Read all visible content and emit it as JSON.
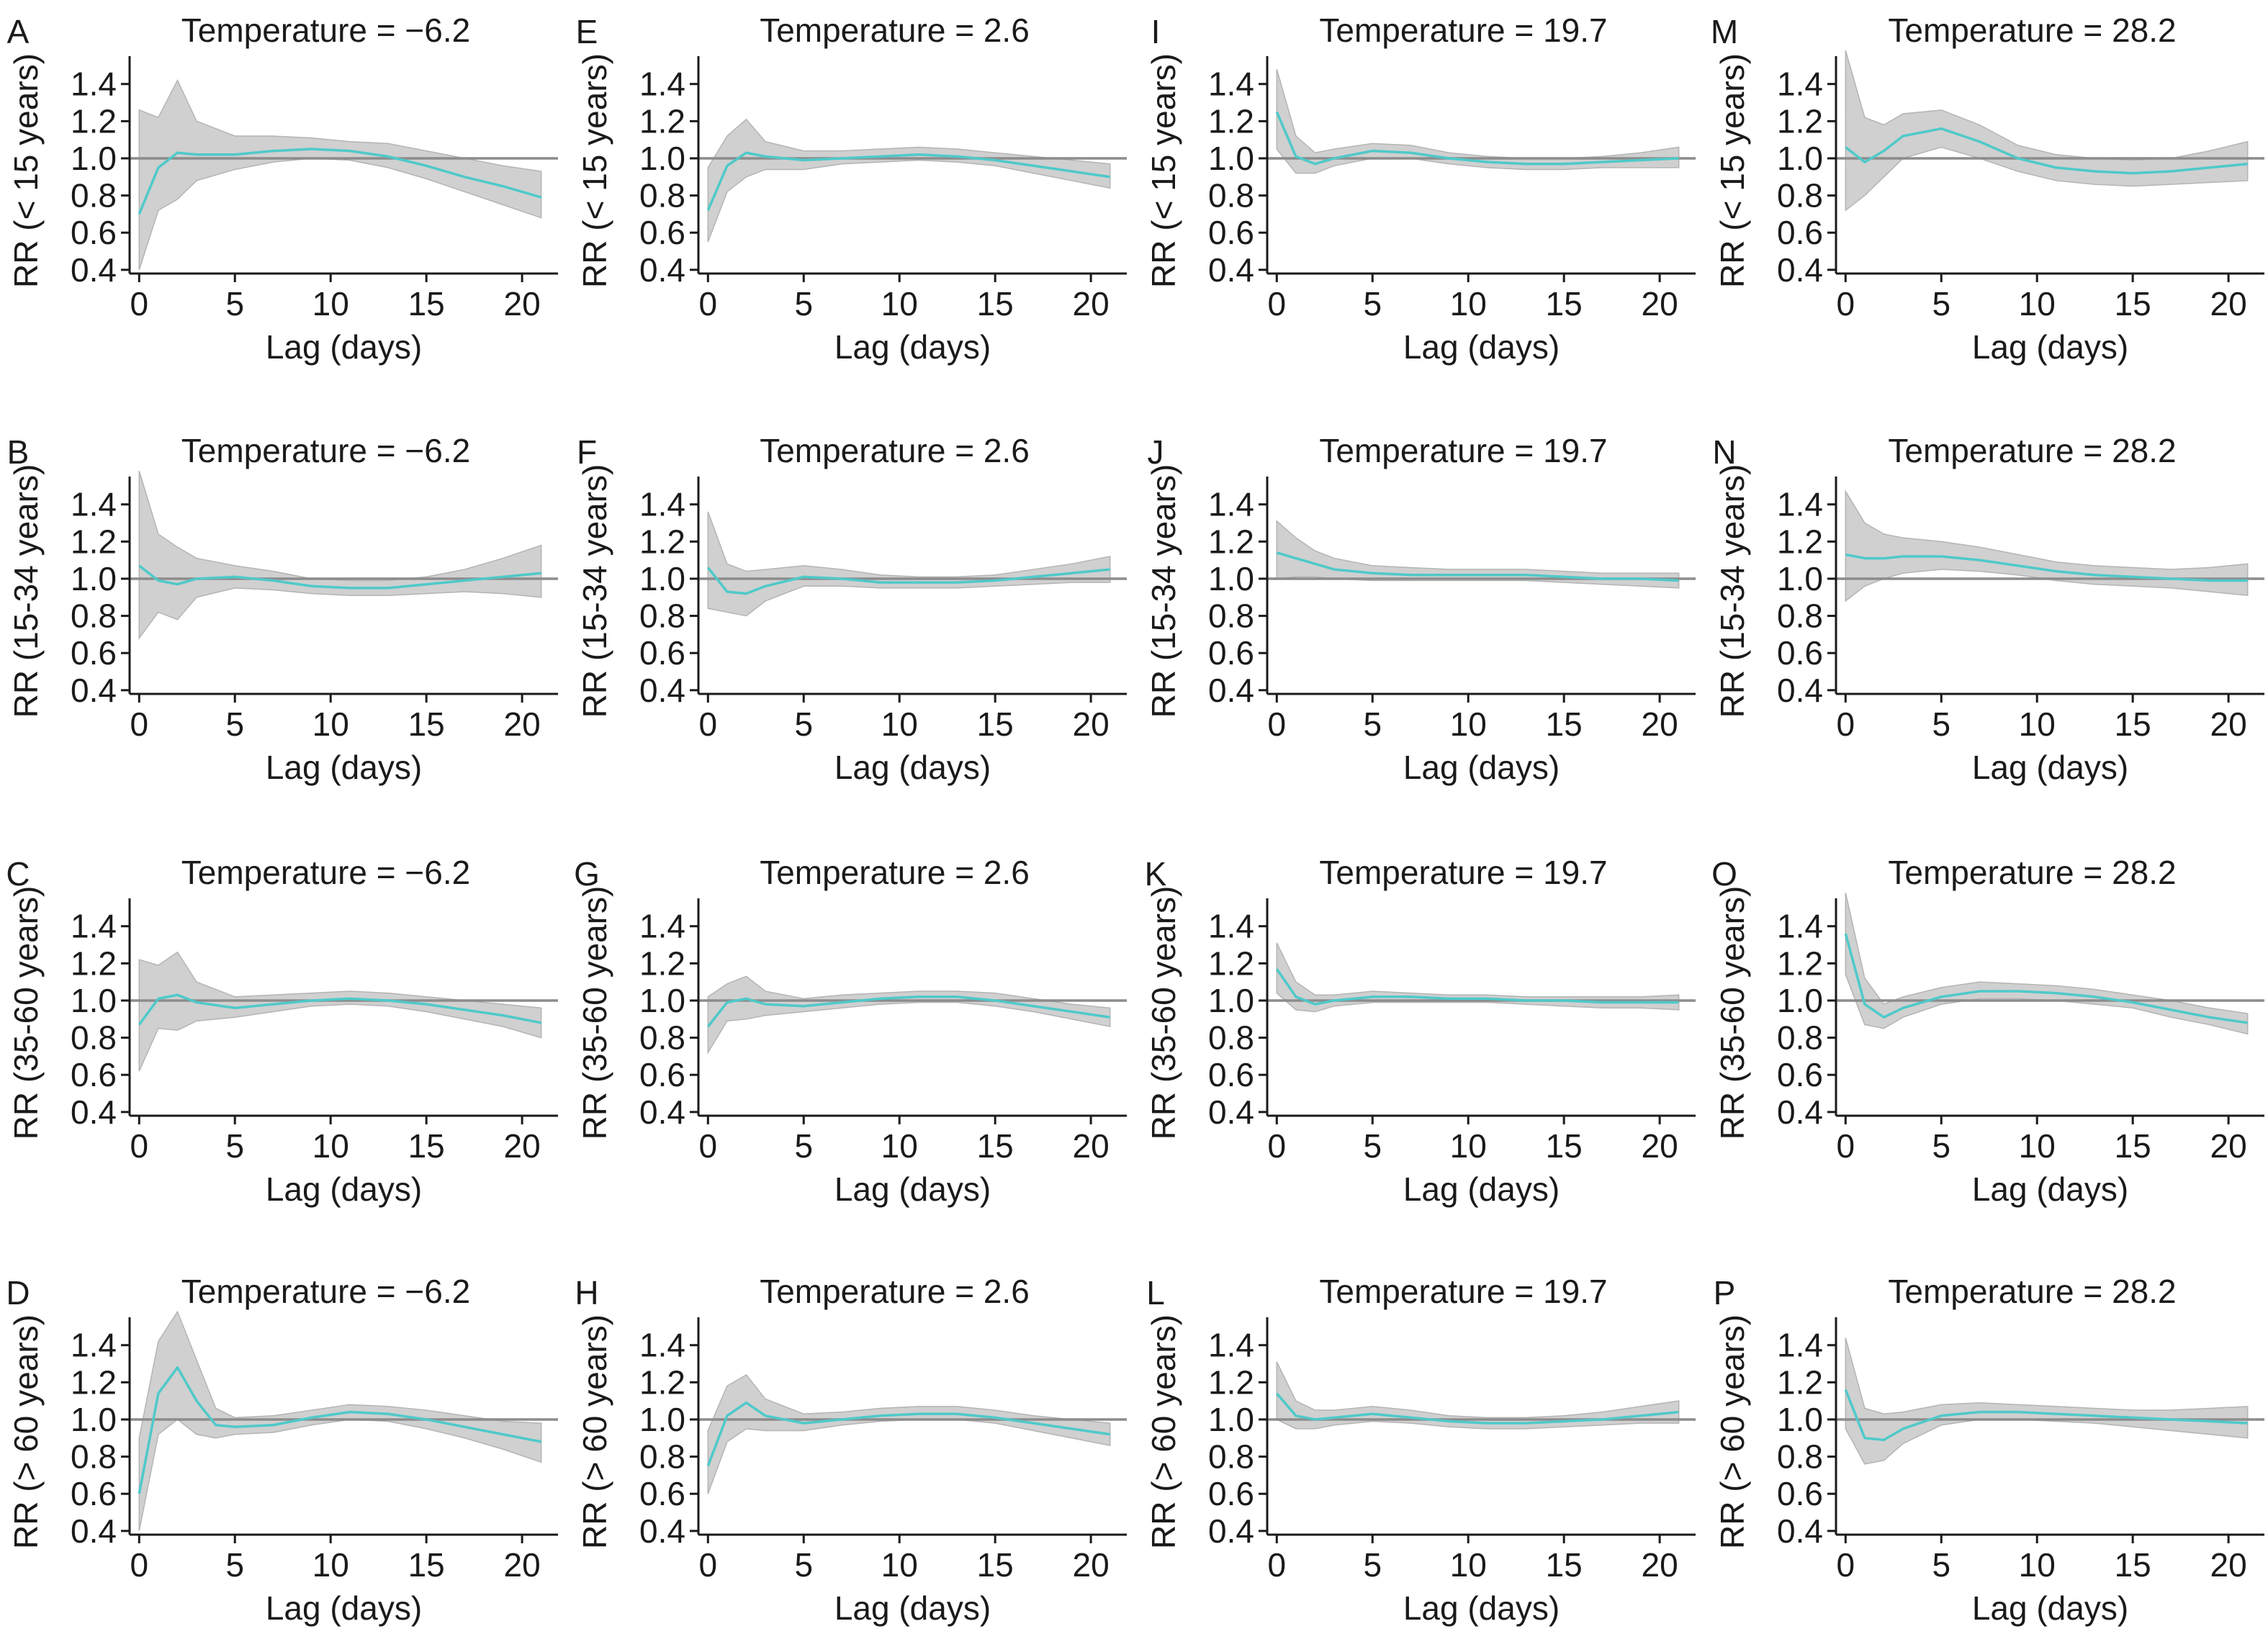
{
  "chart_data": {
    "type": "line",
    "layout": "4x4 grid",
    "grid": false,
    "x_ticks": [
      0,
      5,
      10,
      15,
      20
    ],
    "x_tick_labels": [
      "0",
      "5",
      "10",
      "15",
      "20"
    ],
    "y_ticks": [
      0.4,
      0.6,
      0.8,
      1.0,
      1.2,
      1.4
    ],
    "y_tick_labels": [
      "0.4",
      "0.6",
      "0.8",
      "1.0",
      "1.2",
      "1.4"
    ],
    "xlim": [
      -0.5,
      21.5
    ],
    "ylim": [
      0.38,
      1.55
    ],
    "reference_line": 1.0,
    "colors": {
      "line": "#4fc9c9",
      "band": "#c8c8c8",
      "reference": "#8c8c8c",
      "text": "#1a1a1a"
    },
    "panels": [
      {
        "letter": "A",
        "title": "Temperature = −6.2",
        "xlabel": "Lag (days)",
        "ylabel": "RR (< 15 years)",
        "x": [
          0,
          1,
          2,
          3,
          5,
          7,
          9,
          11,
          13,
          15,
          17,
          19,
          21
        ],
        "y": [
          0.7,
          0.95,
          1.03,
          1.02,
          1.02,
          1.04,
          1.05,
          1.04,
          1.01,
          0.96,
          0.9,
          0.85,
          0.79
        ],
        "lower": [
          0.4,
          0.72,
          0.78,
          0.88,
          0.94,
          0.98,
          1.0,
          0.99,
          0.95,
          0.89,
          0.82,
          0.75,
          0.68
        ],
        "upper": [
          1.26,
          1.22,
          1.42,
          1.2,
          1.12,
          1.12,
          1.11,
          1.09,
          1.08,
          1.04,
          1.0,
          0.96,
          0.93
        ]
      },
      {
        "letter": "B",
        "title": "Temperature = −6.2",
        "xlabel": "Lag (days)",
        "ylabel": "RR (15-34 years)",
        "x": [
          0,
          1,
          2,
          3,
          5,
          7,
          9,
          11,
          13,
          15,
          17,
          19,
          21
        ],
        "y": [
          1.07,
          0.99,
          0.97,
          1.0,
          1.01,
          0.99,
          0.96,
          0.95,
          0.95,
          0.97,
          0.99,
          1.01,
          1.03
        ],
        "lower": [
          0.68,
          0.82,
          0.78,
          0.9,
          0.95,
          0.94,
          0.92,
          0.91,
          0.91,
          0.92,
          0.93,
          0.92,
          0.9
        ],
        "upper": [
          1.58,
          1.24,
          1.17,
          1.11,
          1.07,
          1.04,
          1.0,
          0.99,
          0.99,
          1.01,
          1.05,
          1.11,
          1.18
        ]
      },
      {
        "letter": "C",
        "title": "Temperature = −6.2",
        "xlabel": "Lag (days)",
        "ylabel": "RR (35-60 years)",
        "x": [
          0,
          1,
          2,
          3,
          5,
          7,
          9,
          11,
          13,
          15,
          17,
          19,
          21
        ],
        "y": [
          0.87,
          1.01,
          1.03,
          0.99,
          0.96,
          0.98,
          1.0,
          1.01,
          1.0,
          0.98,
          0.95,
          0.92,
          0.88
        ],
        "lower": [
          0.62,
          0.85,
          0.84,
          0.89,
          0.91,
          0.94,
          0.97,
          0.98,
          0.97,
          0.94,
          0.9,
          0.86,
          0.8
        ],
        "upper": [
          1.22,
          1.19,
          1.26,
          1.1,
          1.02,
          1.03,
          1.04,
          1.05,
          1.04,
          1.02,
          1.0,
          0.98,
          0.96
        ]
      },
      {
        "letter": "D",
        "title": "Temperature = −6.2",
        "xlabel": "Lag (days)",
        "ylabel": "RR (> 60 years)",
        "x": [
          0,
          1,
          2,
          3,
          4,
          5,
          7,
          9,
          11,
          13,
          15,
          17,
          19,
          21
        ],
        "y": [
          0.6,
          1.14,
          1.28,
          1.1,
          0.97,
          0.96,
          0.97,
          1.01,
          1.04,
          1.03,
          1.0,
          0.96,
          0.92,
          0.88
        ],
        "lower": [
          0.4,
          0.92,
          1.0,
          0.92,
          0.9,
          0.92,
          0.93,
          0.97,
          1.0,
          0.99,
          0.95,
          0.9,
          0.84,
          0.77
        ],
        "upper": [
          0.9,
          1.42,
          1.58,
          1.32,
          1.06,
          1.01,
          1.02,
          1.05,
          1.08,
          1.07,
          1.05,
          1.02,
          0.99,
          0.98
        ]
      },
      {
        "letter": "E",
        "title": "Temperature = 2.6",
        "xlabel": "Lag (days)",
        "ylabel": "RR (< 15 years)",
        "x": [
          0,
          1,
          2,
          3,
          5,
          7,
          9,
          11,
          13,
          15,
          17,
          19,
          21
        ],
        "y": [
          0.72,
          0.96,
          1.03,
          1.01,
          0.99,
          1.0,
          1.01,
          1.02,
          1.01,
          0.99,
          0.96,
          0.93,
          0.9
        ],
        "lower": [
          0.55,
          0.82,
          0.9,
          0.94,
          0.94,
          0.97,
          0.98,
          0.99,
          0.98,
          0.96,
          0.92,
          0.88,
          0.84
        ],
        "upper": [
          0.95,
          1.12,
          1.21,
          1.09,
          1.04,
          1.04,
          1.05,
          1.06,
          1.05,
          1.03,
          1.01,
          0.99,
          0.97
        ]
      },
      {
        "letter": "F",
        "title": "Temperature = 2.6",
        "xlabel": "Lag (days)",
        "ylabel": "RR (15-34 years)",
        "x": [
          0,
          1,
          2,
          3,
          5,
          7,
          9,
          11,
          13,
          15,
          17,
          19,
          21
        ],
        "y": [
          1.06,
          0.93,
          0.92,
          0.96,
          1.01,
          1.0,
          0.98,
          0.98,
          0.98,
          0.99,
          1.01,
          1.03,
          1.05
        ],
        "lower": [
          0.84,
          0.82,
          0.8,
          0.88,
          0.96,
          0.96,
          0.95,
          0.95,
          0.95,
          0.96,
          0.97,
          0.98,
          0.98
        ],
        "upper": [
          1.36,
          1.08,
          1.04,
          1.05,
          1.07,
          1.05,
          1.02,
          1.01,
          1.01,
          1.02,
          1.05,
          1.08,
          1.12
        ]
      },
      {
        "letter": "G",
        "title": "Temperature = 2.6",
        "xlabel": "Lag (days)",
        "ylabel": "RR (35-60 years)",
        "x": [
          0,
          1,
          2,
          3,
          5,
          7,
          9,
          11,
          13,
          15,
          17,
          19,
          21
        ],
        "y": [
          0.86,
          0.99,
          1.01,
          0.98,
          0.97,
          0.99,
          1.01,
          1.02,
          1.02,
          1.0,
          0.97,
          0.94,
          0.91
        ],
        "lower": [
          0.72,
          0.89,
          0.9,
          0.92,
          0.94,
          0.96,
          0.98,
          0.99,
          0.99,
          0.97,
          0.94,
          0.9,
          0.86
        ],
        "upper": [
          1.02,
          1.09,
          1.13,
          1.05,
          1.01,
          1.03,
          1.04,
          1.05,
          1.05,
          1.04,
          1.01,
          0.98,
          0.96
        ]
      },
      {
        "letter": "H",
        "title": "Temperature = 2.6",
        "xlabel": "Lag (days)",
        "ylabel": "RR (> 60 years)",
        "x": [
          0,
          1,
          2,
          3,
          5,
          7,
          9,
          11,
          13,
          15,
          17,
          19,
          21
        ],
        "y": [
          0.75,
          1.02,
          1.09,
          1.02,
          0.98,
          1.0,
          1.02,
          1.03,
          1.03,
          1.01,
          0.98,
          0.95,
          0.92
        ],
        "lower": [
          0.6,
          0.88,
          0.95,
          0.94,
          0.94,
          0.97,
          0.99,
          1.0,
          1.0,
          0.98,
          0.94,
          0.9,
          0.86
        ],
        "upper": [
          0.94,
          1.18,
          1.24,
          1.11,
          1.03,
          1.04,
          1.06,
          1.07,
          1.07,
          1.05,
          1.02,
          1.0,
          0.98
        ]
      },
      {
        "letter": "I",
        "title": "Temperature = 19.7",
        "xlabel": "Lag (days)",
        "ylabel": "RR (< 15 years)",
        "x": [
          0,
          1,
          2,
          3,
          5,
          7,
          9,
          11,
          13,
          15,
          17,
          19,
          21
        ],
        "y": [
          1.25,
          1.01,
          0.97,
          1.0,
          1.04,
          1.03,
          1.0,
          0.98,
          0.97,
          0.97,
          0.98,
          0.99,
          1.0
        ],
        "lower": [
          1.05,
          0.92,
          0.92,
          0.96,
          1.0,
          1.0,
          0.97,
          0.95,
          0.94,
          0.94,
          0.95,
          0.95,
          0.95
        ],
        "upper": [
          1.48,
          1.12,
          1.03,
          1.05,
          1.08,
          1.07,
          1.03,
          1.01,
          1.0,
          1.0,
          1.01,
          1.03,
          1.06
        ]
      },
      {
        "letter": "J",
        "title": "Temperature = 19.7",
        "xlabel": "Lag (days)",
        "ylabel": "RR (15-34 years)",
        "x": [
          0,
          1,
          2,
          3,
          5,
          7,
          9,
          11,
          13,
          15,
          17,
          19,
          21
        ],
        "y": [
          1.14,
          1.11,
          1.08,
          1.05,
          1.03,
          1.02,
          1.02,
          1.02,
          1.02,
          1.01,
          1.0,
          1.0,
          0.99
        ],
        "lower": [
          1.0,
          1.01,
          1.01,
          1.0,
          0.99,
          0.99,
          0.99,
          0.99,
          0.99,
          0.98,
          0.97,
          0.96,
          0.95
        ],
        "upper": [
          1.31,
          1.22,
          1.15,
          1.11,
          1.07,
          1.06,
          1.05,
          1.05,
          1.05,
          1.04,
          1.03,
          1.03,
          1.03
        ]
      },
      {
        "letter": "K",
        "title": "Temperature = 19.7",
        "xlabel": "Lag (days)",
        "ylabel": "RR (35-60 years)",
        "x": [
          0,
          1,
          2,
          3,
          5,
          7,
          9,
          11,
          13,
          15,
          17,
          19,
          21
        ],
        "y": [
          1.17,
          1.02,
          0.98,
          1.0,
          1.02,
          1.02,
          1.01,
          1.01,
          1.0,
          1.0,
          0.99,
          0.99,
          0.99
        ],
        "lower": [
          1.04,
          0.95,
          0.94,
          0.97,
          0.99,
          0.99,
          0.99,
          0.99,
          0.98,
          0.97,
          0.96,
          0.96,
          0.95
        ],
        "upper": [
          1.31,
          1.1,
          1.03,
          1.03,
          1.05,
          1.04,
          1.03,
          1.03,
          1.02,
          1.02,
          1.02,
          1.02,
          1.03
        ]
      },
      {
        "letter": "L",
        "title": "Temperature = 19.7",
        "xlabel": "Lag (days)",
        "ylabel": "RR (> 60 years)",
        "x": [
          0,
          1,
          2,
          3,
          5,
          7,
          9,
          11,
          13,
          15,
          17,
          19,
          21
        ],
        "y": [
          1.14,
          1.02,
          1.0,
          1.01,
          1.03,
          1.01,
          0.99,
          0.98,
          0.98,
          0.99,
          1.0,
          1.02,
          1.04
        ],
        "lower": [
          1.0,
          0.95,
          0.95,
          0.97,
          0.99,
          0.98,
          0.96,
          0.95,
          0.95,
          0.96,
          0.97,
          0.98,
          0.98
        ],
        "upper": [
          1.31,
          1.1,
          1.05,
          1.05,
          1.07,
          1.05,
          1.02,
          1.01,
          1.01,
          1.02,
          1.04,
          1.07,
          1.1
        ]
      },
      {
        "letter": "M",
        "title": "Temperature = 28.2",
        "xlabel": "Lag (days)",
        "ylabel": "RR (< 15 years)",
        "x": [
          0,
          1,
          2,
          3,
          5,
          7,
          9,
          11,
          13,
          15,
          17,
          19,
          21
        ],
        "y": [
          1.06,
          0.98,
          1.04,
          1.12,
          1.16,
          1.09,
          1.0,
          0.95,
          0.93,
          0.92,
          0.93,
          0.95,
          0.97
        ],
        "lower": [
          0.72,
          0.8,
          0.9,
          1.0,
          1.06,
          1.0,
          0.93,
          0.88,
          0.86,
          0.85,
          0.86,
          0.87,
          0.88
        ],
        "upper": [
          1.58,
          1.22,
          1.18,
          1.24,
          1.26,
          1.18,
          1.07,
          1.02,
          1.0,
          0.99,
          1.0,
          1.04,
          1.09
        ]
      },
      {
        "letter": "N",
        "title": "Temperature = 28.2",
        "xlabel": "Lag (days)",
        "ylabel": "RR (15-34 years)",
        "x": [
          0,
          1,
          2,
          3,
          5,
          7,
          9,
          11,
          13,
          15,
          17,
          19,
          21
        ],
        "y": [
          1.13,
          1.11,
          1.11,
          1.12,
          1.12,
          1.1,
          1.07,
          1.04,
          1.02,
          1.01,
          1.0,
          0.99,
          0.99
        ],
        "lower": [
          0.88,
          0.96,
          1.0,
          1.03,
          1.05,
          1.04,
          1.02,
          0.99,
          0.97,
          0.96,
          0.95,
          0.93,
          0.91
        ],
        "upper": [
          1.47,
          1.3,
          1.24,
          1.22,
          1.2,
          1.17,
          1.13,
          1.09,
          1.07,
          1.06,
          1.05,
          1.06,
          1.08
        ]
      },
      {
        "letter": "O",
        "title": "Temperature = 28.2",
        "xlabel": "Lag (days)",
        "ylabel": "RR (35-60 years)",
        "x": [
          0,
          1,
          2,
          3,
          5,
          7,
          9,
          11,
          13,
          15,
          17,
          19,
          21
        ],
        "y": [
          1.36,
          0.98,
          0.91,
          0.96,
          1.02,
          1.05,
          1.05,
          1.04,
          1.02,
          0.99,
          0.95,
          0.91,
          0.88
        ],
        "lower": [
          1.14,
          0.87,
          0.85,
          0.91,
          0.98,
          1.01,
          1.01,
          1.0,
          0.98,
          0.96,
          0.91,
          0.87,
          0.82
        ],
        "upper": [
          1.58,
          1.12,
          0.98,
          1.02,
          1.07,
          1.1,
          1.09,
          1.08,
          1.06,
          1.03,
          1.0,
          0.96,
          0.93
        ]
      },
      {
        "letter": "P",
        "title": "Temperature = 28.2",
        "xlabel": "Lag (days)",
        "ylabel": "RR (> 60 years)",
        "x": [
          0,
          1,
          2,
          3,
          5,
          7,
          9,
          11,
          13,
          15,
          17,
          19,
          21
        ],
        "y": [
          1.16,
          0.9,
          0.89,
          0.95,
          1.02,
          1.04,
          1.04,
          1.03,
          1.02,
          1.01,
          1.0,
          0.99,
          0.98
        ],
        "lower": [
          0.95,
          0.76,
          0.78,
          0.87,
          0.97,
          1.0,
          1.0,
          0.99,
          0.98,
          0.96,
          0.94,
          0.92,
          0.9
        ],
        "upper": [
          1.44,
          1.06,
          1.03,
          1.04,
          1.08,
          1.09,
          1.08,
          1.07,
          1.06,
          1.05,
          1.05,
          1.06,
          1.07
        ]
      }
    ]
  }
}
